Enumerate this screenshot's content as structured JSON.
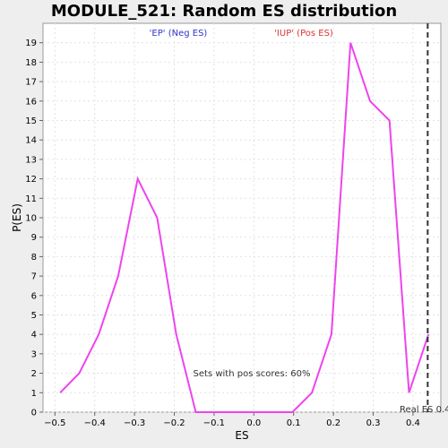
{
  "chart_data": {
    "type": "line",
    "title": "MODULE_521: Random ES distribution",
    "xlabel": "ES",
    "ylabel": "P(ES)",
    "xlim": [
      -0.53,
      0.47
    ],
    "ylim": [
      0,
      20
    ],
    "x_ticks": [
      -0.5,
      -0.4,
      -0.3,
      -0.2,
      -0.1,
      0.0,
      0.1,
      0.2,
      0.3,
      0.4
    ],
    "x_tick_labels": [
      "−0.5",
      "−0.4",
      "−0.3",
      "−0.2",
      "−0.1",
      "0.0",
      "0.1",
      "0.2",
      "0.3",
      "0.4"
    ],
    "y_ticks": [
      0,
      1,
      2,
      3,
      4,
      5,
      6,
      7,
      8,
      9,
      10,
      11,
      12,
      13,
      14,
      15,
      16,
      17,
      18,
      19
    ],
    "grid": true,
    "series": [
      {
        "color": "#ee44ee",
        "x": [
          -0.487,
          -0.439,
          -0.39,
          -0.341,
          -0.292,
          -0.243,
          -0.195,
          -0.146,
          -0.097,
          -0.049,
          0.0,
          0.049,
          0.097,
          0.146,
          0.195,
          0.243,
          0.292,
          0.341,
          0.39,
          0.439
        ],
        "y": [
          1,
          2,
          4,
          7,
          12,
          10,
          4,
          0,
          0,
          0,
          0,
          0,
          0,
          1,
          4,
          19,
          16,
          15,
          1,
          4
        ]
      }
    ],
    "neg_label": "'EP' (Neg ES)",
    "neg_label_color": "#3333cc",
    "pos_label": "'IUP' (Pos ES)",
    "pos_label_color": "#dd3333",
    "annotation": "Sets with pos scores: 60%",
    "real_es": {
      "x": 0.437,
      "label": "Real ES 0.4"
    }
  }
}
